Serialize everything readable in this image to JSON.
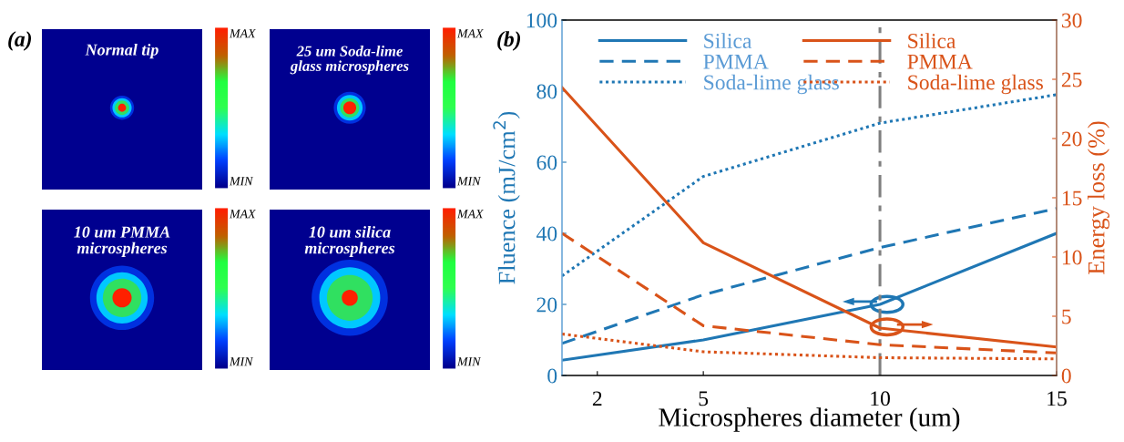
{
  "chart_data": [
    {
      "type": "other",
      "title": "(a)",
      "annotations": [
        "Normal tip",
        "25 um Soda-lime\nglass microspheres",
        "10 um PMMA\nmicrospheres",
        "10 um silica\nmicrospheres",
        "MAX",
        "MIN",
        "MAX",
        "MIN",
        "MAX",
        "MIN",
        "MAX",
        "MIN"
      ]
    },
    {
      "type": "line",
      "title": "(b)",
      "xlabel": "Microspheres diameter (um)",
      "ylabel": "Fluence (mJ/cm$^{2}$)",
      "y2label": "Energy loss (%)",
      "x": [
        1,
        5,
        10,
        15
      ],
      "xlim": [
        1,
        15
      ],
      "xticks": [
        2,
        5,
        10,
        15
      ],
      "ylim": [
        0,
        100
      ],
      "yticks": [
        0,
        20,
        40,
        60,
        80,
        100
      ],
      "y2lim": [
        0,
        30
      ],
      "y2ticks": [
        0,
        5,
        10,
        15,
        20,
        25,
        30
      ],
      "legend": "top",
      "marker": "none",
      "ref_lines": [
        {
          "axis": "x",
          "value": 10,
          "color": "#7f7f7f",
          "line_style": "dashdot"
        }
      ],
      "series": [
        {
          "name": "Silica",
          "color": "#1f77b4",
          "line_style": "solid",
          "values": [
            4.3,
            10,
            20,
            40
          ]
        },
        {
          "name": "PMMA",
          "color": "#1f77b4",
          "line_style": "dashed",
          "values": [
            9,
            22.7,
            36,
            47
          ]
        },
        {
          "name": "Soda-lime glass",
          "color": "#1f77b4",
          "line_style": "dotted",
          "values": [
            28,
            56,
            71,
            79
          ]
        },
        {
          "name": "Silica",
          "color": "#d95319",
          "line_style": "solid",
          "axis": "y2",
          "values": [
            24.3,
            11.2,
            4.0,
            2.4
          ]
        },
        {
          "name": "PMMA",
          "color": "#d95319",
          "line_style": "dashed",
          "axis": "y2",
          "values": [
            12.0,
            4.2,
            2.6,
            1.9
          ]
        },
        {
          "name": "Soda-lime glass",
          "color": "#d95319",
          "line_style": "dotted",
          "axis": "y2",
          "values": [
            3.5,
            2.0,
            1.5,
            1.4
          ]
        }
      ]
    }
  ]
}
